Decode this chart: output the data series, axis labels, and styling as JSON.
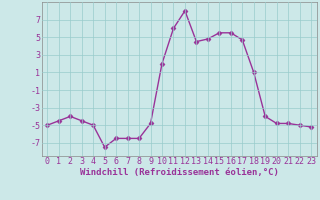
{
  "x": [
    0,
    1,
    2,
    3,
    4,
    5,
    6,
    7,
    8,
    9,
    10,
    11,
    12,
    13,
    14,
    15,
    16,
    17,
    18,
    19,
    20,
    21,
    22,
    23
  ],
  "y": [
    -5.0,
    -4.5,
    -4.0,
    -4.5,
    -5.0,
    -7.5,
    -6.5,
    -6.5,
    -6.5,
    -4.8,
    2.0,
    6.0,
    8.0,
    4.5,
    4.8,
    5.5,
    5.5,
    4.7,
    1.0,
    -4.0,
    -4.8,
    -4.8,
    -5.0,
    -5.2
  ],
  "line_color": "#993399",
  "marker": "D",
  "marker_size": 2.5,
  "xlabel": "Windchill (Refroidissement éolien,°C)",
  "xlim": [
    -0.5,
    23.5
  ],
  "ylim": [
    -8.5,
    9.0
  ],
  "yticks": [
    -7,
    -5,
    -3,
    -1,
    1,
    3,
    5,
    7
  ],
  "xticks": [
    0,
    1,
    2,
    3,
    4,
    5,
    6,
    7,
    8,
    9,
    10,
    11,
    12,
    13,
    14,
    15,
    16,
    17,
    18,
    19,
    20,
    21,
    22,
    23
  ],
  "bg_color": "#cce8e8",
  "grid_color": "#99cccc",
  "line_width": 1.0,
  "xlabel_fontsize": 6.5,
  "tick_fontsize": 6.0,
  "fig_width": 3.2,
  "fig_height": 2.0,
  "dpi": 100
}
